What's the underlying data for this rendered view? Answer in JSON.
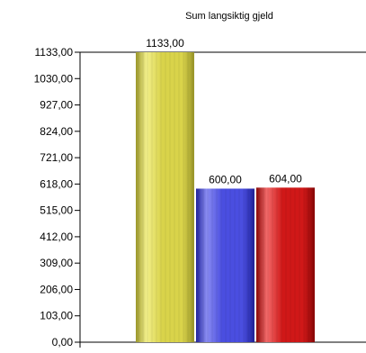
{
  "chart_data": {
    "type": "bar",
    "title": "Sum langsiktig gjeld",
    "xlabel": "",
    "ylabel": "",
    "categories": [
      "",
      "",
      ""
    ],
    "values": [
      1133.0,
      600.0,
      604.0
    ],
    "value_labels": [
      "1133,00",
      "600,00",
      "604,00"
    ],
    "ylim": [
      0,
      1133
    ],
    "y_ticks": [
      0,
      103,
      206,
      309,
      412,
      515,
      618,
      721,
      824,
      927,
      1030,
      1133
    ],
    "y_tick_labels": [
      "0,00",
      "103,00",
      "206,00",
      "309,00",
      "412,00",
      "515,00",
      "618,00",
      "721,00",
      "824,00",
      "927,00",
      "1030,00",
      "1133,00"
    ],
    "grid": false,
    "legend": "none",
    "colors": [
      {
        "light": "#f2ef8a",
        "mid": "#d9d34a",
        "dark": "#9a962a"
      },
      {
        "light": "#8a8cf2",
        "mid": "#4a4ee0",
        "dark": "#20229a"
      },
      {
        "light": "#f26a6a",
        "mid": "#d01818",
        "dark": "#8a0808"
      }
    ]
  }
}
